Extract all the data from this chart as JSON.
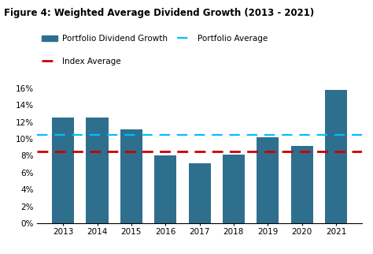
{
  "title": "Figure 4: Weighted Average Dividend Growth (2013 - 2021)",
  "years": [
    2013,
    2014,
    2015,
    2016,
    2017,
    2018,
    2019,
    2020,
    2021
  ],
  "values": [
    0.125,
    0.125,
    0.111,
    0.08,
    0.071,
    0.081,
    0.102,
    0.092,
    0.158
  ],
  "bar_color": "#2e6f8e",
  "portfolio_avg": 0.105,
  "index_avg": 0.085,
  "portfolio_avg_color": "#00bfff",
  "index_avg_color": "#cc0000",
  "ylim": [
    0,
    0.18
  ],
  "yticks": [
    0,
    0.02,
    0.04,
    0.06,
    0.08,
    0.1,
    0.12,
    0.14,
    0.16
  ],
  "background_color": "#ffffff",
  "title_fontsize": 8.5,
  "tick_fontsize": 7.5,
  "legend_fontsize": 7.5,
  "legend_label_bar": "Portfolio Dividend Growth",
  "legend_label_blue": "Portfolio Average",
  "legend_label_red": "Index Average",
  "bar_width": 0.65
}
